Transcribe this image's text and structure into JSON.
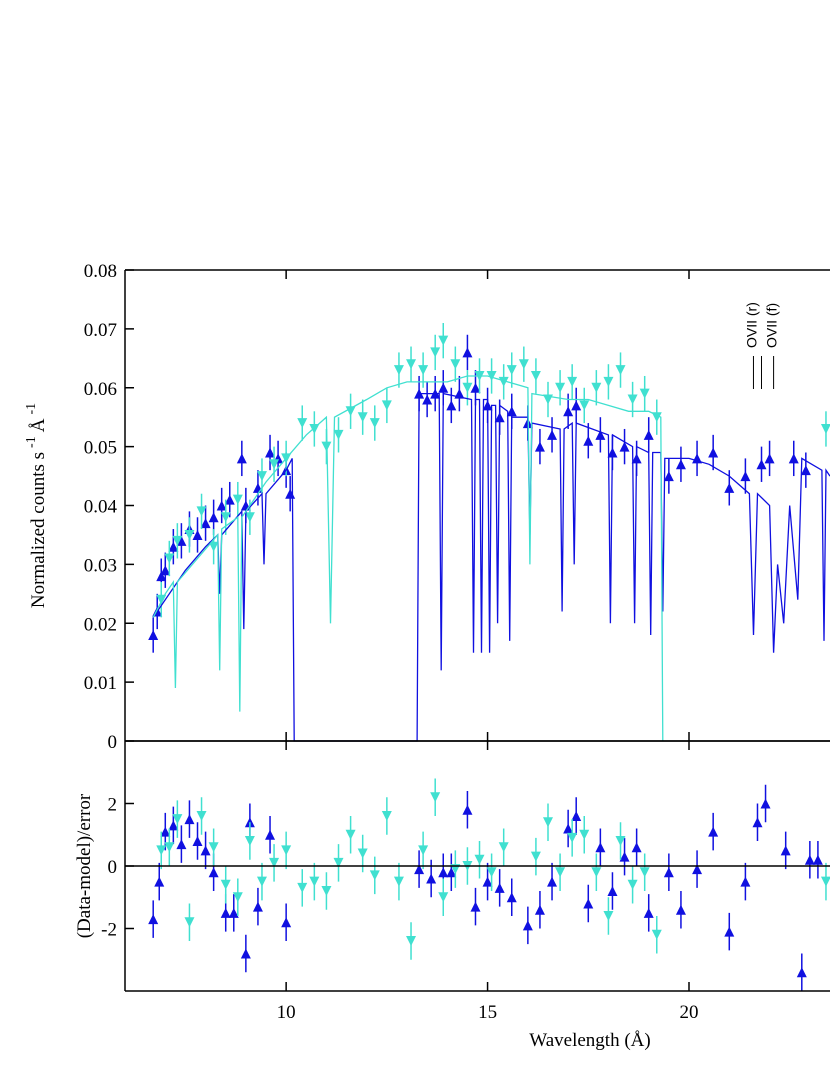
{
  "chart_data": [
    {
      "type": "errorbar",
      "ylabel": [
        "Normalized counts s",
        "-1",
        "Å",
        "-1"
      ],
      "xlim": [
        6,
        23.5
      ],
      "ylim": [
        0,
        0.08
      ],
      "yticks": [
        0,
        0.01,
        0.02,
        0.03,
        0.04,
        0.05,
        0.06,
        0.07,
        0.08
      ],
      "annotations": [
        {
          "text": "OVII (r)",
          "x": 21.6
        },
        {
          "text": "OVII (f)",
          "x": 22.1
        }
      ],
      "marker_lines": [
        21.6,
        21.8,
        22.1
      ],
      "series": [
        {
          "color": "#1010e0",
          "marker": "triangle-up",
          "x": [
            6.7,
            6.8,
            6.9,
            7.0,
            7.2,
            7.4,
            7.6,
            7.8,
            8.0,
            8.2,
            8.4,
            8.6,
            8.9,
            9.0,
            9.3,
            9.6,
            9.8,
            10.0,
            10.1,
            13.3,
            13.5,
            13.7,
            13.9,
            14.1,
            14.3,
            14.5,
            14.7,
            15.0,
            15.3,
            15.6,
            16.0,
            16.3,
            16.6,
            17.0,
            17.2,
            17.5,
            17.8,
            18.1,
            18.4,
            18.7,
            19.0,
            19.5,
            19.8,
            20.2,
            20.6,
            21.0,
            21.4,
            21.8,
            22.0,
            22.6,
            22.9
          ],
          "values": [
            0.018,
            0.022,
            0.028,
            0.029,
            0.033,
            0.034,
            0.036,
            0.035,
            0.037,
            0.038,
            0.04,
            0.041,
            0.048,
            0.04,
            0.043,
            0.049,
            0.048,
            0.046,
            0.042,
            0.059,
            0.058,
            0.059,
            0.06,
            0.057,
            0.059,
            0.066,
            0.06,
            0.057,
            0.055,
            0.056,
            0.054,
            0.05,
            0.052,
            0.056,
            0.057,
            0.051,
            0.052,
            0.049,
            0.05,
            0.048,
            0.052,
            0.045,
            0.047,
            0.048,
            0.049,
            0.043,
            0.045,
            0.047,
            0.048,
            0.048,
            0.046
          ],
          "errors": [
            0.003,
            0.003,
            0.003,
            0.003,
            0.003,
            0.003,
            0.003,
            0.003,
            0.003,
            0.003,
            0.003,
            0.003,
            0.003,
            0.003,
            0.003,
            0.003,
            0.003,
            0.003,
            0.003,
            0.003,
            0.003,
            0.003,
            0.003,
            0.003,
            0.003,
            0.003,
            0.003,
            0.003,
            0.003,
            0.003,
            0.003,
            0.003,
            0.003,
            0.003,
            0.003,
            0.003,
            0.003,
            0.003,
            0.003,
            0.003,
            0.003,
            0.003,
            0.003,
            0.003,
            0.003,
            0.003,
            0.003,
            0.003,
            0.003,
            0.003,
            0.003
          ]
        },
        {
          "color": "#40e0d0",
          "marker": "triangle-down",
          "x": [
            6.9,
            7.1,
            7.3,
            7.6,
            7.9,
            8.2,
            8.5,
            8.8,
            9.1,
            9.4,
            9.7,
            10.0,
            10.4,
            10.7,
            11.0,
            11.3,
            11.6,
            11.9,
            12.2,
            12.5,
            12.8,
            13.1,
            13.4,
            13.7,
            13.9,
            14.2,
            14.5,
            14.8,
            15.1,
            15.4,
            15.6,
            15.9,
            16.2,
            16.5,
            16.8,
            17.1,
            17.4,
            17.7,
            18.0,
            18.3,
            18.6,
            18.9,
            19.2,
            23.4
          ],
          "values": [
            0.024,
            0.031,
            0.034,
            0.035,
            0.039,
            0.033,
            0.038,
            0.041,
            0.038,
            0.045,
            0.047,
            0.048,
            0.054,
            0.053,
            0.05,
            0.052,
            0.056,
            0.055,
            0.054,
            0.057,
            0.063,
            0.064,
            0.063,
            0.066,
            0.068,
            0.064,
            0.06,
            0.062,
            0.062,
            0.061,
            0.063,
            0.064,
            0.062,
            0.058,
            0.06,
            0.061,
            0.057,
            0.06,
            0.061,
            0.063,
            0.058,
            0.059,
            0.055,
            0.053
          ],
          "errors": [
            0.003,
            0.003,
            0.003,
            0.003,
            0.003,
            0.003,
            0.003,
            0.003,
            0.003,
            0.003,
            0.003,
            0.003,
            0.003,
            0.003,
            0.003,
            0.003,
            0.003,
            0.003,
            0.003,
            0.003,
            0.003,
            0.003,
            0.003,
            0.003,
            0.003,
            0.003,
            0.003,
            0.003,
            0.003,
            0.003,
            0.003,
            0.003,
            0.003,
            0.003,
            0.003,
            0.003,
            0.003,
            0.003,
            0.003,
            0.003,
            0.003,
            0.003,
            0.003,
            0.003
          ]
        },
        {
          "color": "#1010e0",
          "marker": "none",
          "x": [
            6.7,
            7.5,
            8.0,
            8.3,
            8.35,
            8.4,
            8.9,
            8.95,
            9.0,
            9.4,
            9.45,
            9.5,
            10.0,
            10.15,
            10.2,
            13.25,
            13.3,
            13.8,
            13.85,
            13.9,
            14.6,
            14.65,
            14.7,
            14.8,
            14.85,
            14.9,
            15.0,
            15.05,
            15.1,
            15.2,
            15.25,
            15.3,
            15.5,
            15.55,
            15.6,
            16.0,
            16.05,
            16.1,
            16.8,
            16.85,
            16.9,
            17.1,
            17.15,
            17.2,
            18.0,
            18.05,
            18.1,
            18.6,
            18.65,
            18.7,
            19.0,
            19.05,
            19.1,
            19.3,
            19.35,
            19.4,
            20.0,
            20.5,
            21.0,
            21.5,
            21.6,
            21.7,
            22.0,
            22.1,
            22.2,
            22.35,
            22.5,
            22.7,
            22.8,
            23.3,
            23.35,
            23.4,
            23.5
          ],
          "values": [
            0.021,
            0.029,
            0.033,
            0.035,
            0.025,
            0.035,
            0.039,
            0.019,
            0.039,
            0.042,
            0.03,
            0.042,
            0.046,
            0.048,
            0,
            0,
            0.059,
            0.059,
            0.012,
            0.059,
            0.058,
            0.015,
            0.058,
            0.058,
            0.015,
            0.058,
            0.058,
            0.015,
            0.057,
            0.057,
            0.02,
            0.057,
            0.056,
            0.017,
            0.055,
            0.055,
            0.035,
            0.054,
            0.053,
            0.022,
            0.053,
            0.054,
            0.03,
            0.054,
            0.052,
            0.02,
            0.052,
            0.05,
            0.02,
            0.05,
            0.049,
            0.018,
            0.049,
            0.049,
            0.022,
            0.048,
            0.048,
            0.047,
            0.045,
            0.042,
            0.018,
            0.042,
            0.04,
            0.015,
            0.03,
            0.02,
            0.04,
            0.024,
            0.048,
            0.046,
            0.017,
            0.046,
            0.045
          ]
        },
        {
          "color": "#40e0d0",
          "marker": "none",
          "x": [
            6.7,
            7.0,
            7.2,
            7.25,
            7.3,
            7.8,
            8.3,
            8.35,
            8.4,
            8.8,
            8.85,
            8.9,
            9.5,
            10.0,
            10.5,
            11.0,
            11.1,
            11.2,
            12.0,
            12.5,
            13.0,
            13.5,
            14.0,
            14.5,
            15.0,
            15.5,
            16.0,
            16.05,
            16.1,
            17.0,
            17.5,
            18.0,
            18.5,
            19.0,
            19.3,
            19.35
          ],
          "values": [
            0.021,
            0.025,
            0.027,
            0.009,
            0.027,
            0.031,
            0.035,
            0.012,
            0.036,
            0.038,
            0.005,
            0.038,
            0.044,
            0.048,
            0.052,
            0.055,
            0.02,
            0.055,
            0.058,
            0.06,
            0.061,
            0.061,
            0.061,
            0.062,
            0.062,
            0.061,
            0.06,
            0.03,
            0.059,
            0.058,
            0.058,
            0.057,
            0.056,
            0.056,
            0.055,
            0
          ]
        }
      ]
    },
    {
      "type": "errorbar",
      "ylabel": [
        "(Data-model)/error"
      ],
      "xlabel": "Wavelength (Å)",
      "xlim": [
        6,
        23.5
      ],
      "ylim": [
        -4,
        4
      ],
      "yticks": [
        -2,
        0,
        2
      ],
      "xticks": [
        10,
        15,
        20
      ],
      "hline": 0,
      "series": [
        {
          "color": "#1010e0",
          "marker": "triangle-up",
          "x": [
            6.7,
            6.85,
            7.0,
            7.2,
            7.4,
            7.6,
            7.8,
            8.0,
            8.2,
            8.5,
            8.7,
            9.0,
            9.1,
            9.3,
            9.6,
            10.0,
            13.3,
            13.6,
            13.9,
            14.1,
            14.5,
            14.7,
            15.0,
            15.3,
            15.6,
            16.0,
            16.3,
            16.6,
            17.0,
            17.2,
            17.5,
            17.8,
            18.1,
            18.4,
            18.7,
            19.0,
            19.5,
            19.8,
            20.2,
            20.6,
            21.0,
            21.4,
            21.7,
            21.9,
            22.4,
            22.8,
            23.0,
            23.2
          ],
          "values": [
            -1.7,
            -0.5,
            1.1,
            1.3,
            0.7,
            1.5,
            0.8,
            0.5,
            -0.2,
            -1.5,
            -1.5,
            -2.8,
            1.4,
            -1.3,
            1.0,
            -1.8,
            -0.1,
            -0.4,
            -0.2,
            -0.2,
            1.8,
            -1.3,
            -0.5,
            -0.7,
            -1.0,
            -1.9,
            -1.4,
            -0.5,
            1.2,
            1.6,
            -1.2,
            0.6,
            -0.8,
            0.3,
            0.6,
            -1.5,
            -0.2,
            -1.4,
            -0.1,
            1.1,
            -2.1,
            -0.5,
            1.4,
            2.0,
            0.5,
            -3.4,
            0.2,
            0.2
          ],
          "errors": [
            0.6,
            0.6,
            0.6,
            0.6,
            0.6,
            0.6,
            0.6,
            0.6,
            0.6,
            0.6,
            0.6,
            0.6,
            0.6,
            0.6,
            0.6,
            0.6,
            0.6,
            0.6,
            0.6,
            0.6,
            0.6,
            0.6,
            0.6,
            0.6,
            0.6,
            0.6,
            0.6,
            0.6,
            0.6,
            0.6,
            0.6,
            0.6,
            0.6,
            0.6,
            0.6,
            0.6,
            0.6,
            0.6,
            0.6,
            0.6,
            0.6,
            0.6,
            0.6,
            0.6,
            0.6,
            0.6,
            0.6,
            0.6
          ]
        },
        {
          "color": "#40e0d0",
          "marker": "triangle-down",
          "x": [
            6.9,
            7.1,
            7.3,
            7.6,
            7.9,
            8.2,
            8.5,
            8.8,
            9.1,
            9.4,
            9.7,
            10.0,
            10.4,
            10.7,
            11.0,
            11.3,
            11.6,
            11.9,
            12.2,
            12.5,
            12.8,
            13.1,
            13.4,
            13.7,
            13.9,
            14.2,
            14.5,
            14.8,
            15.1,
            15.4,
            16.2,
            16.5,
            16.8,
            17.1,
            17.4,
            17.7,
            18.0,
            18.3,
            18.6,
            18.9,
            19.2,
            23.4
          ],
          "values": [
            0.5,
            0.6,
            1.5,
            -1.8,
            1.6,
            0.6,
            -0.6,
            -1.0,
            0.8,
            -0.5,
            0.1,
            0.5,
            -0.7,
            -0.5,
            -0.8,
            0.1,
            1.0,
            0.4,
            -0.3,
            1.6,
            -0.5,
            -2.4,
            0.5,
            2.2,
            -1.0,
            -0.1,
            0,
            0.2,
            -0.2,
            0.6,
            0.3,
            1.4,
            -0.2,
            0.9,
            1.0,
            -0.2,
            -1.6,
            0.8,
            -0.6,
            -0.2,
            -2.2,
            -0.5
          ],
          "errors": [
            0.6,
            0.6,
            0.6,
            0.6,
            0.6,
            0.6,
            0.6,
            0.6,
            0.6,
            0.6,
            0.6,
            0.6,
            0.6,
            0.6,
            0.6,
            0.6,
            0.6,
            0.6,
            0.6,
            0.6,
            0.6,
            0.6,
            0.6,
            0.6,
            0.6,
            0.6,
            0.6,
            0.6,
            0.6,
            0.6,
            0.6,
            0.6,
            0.6,
            0.6,
            0.6,
            0.6,
            0.6,
            0.6,
            0.6,
            0.6,
            0.6,
            0.6
          ]
        }
      ]
    }
  ]
}
